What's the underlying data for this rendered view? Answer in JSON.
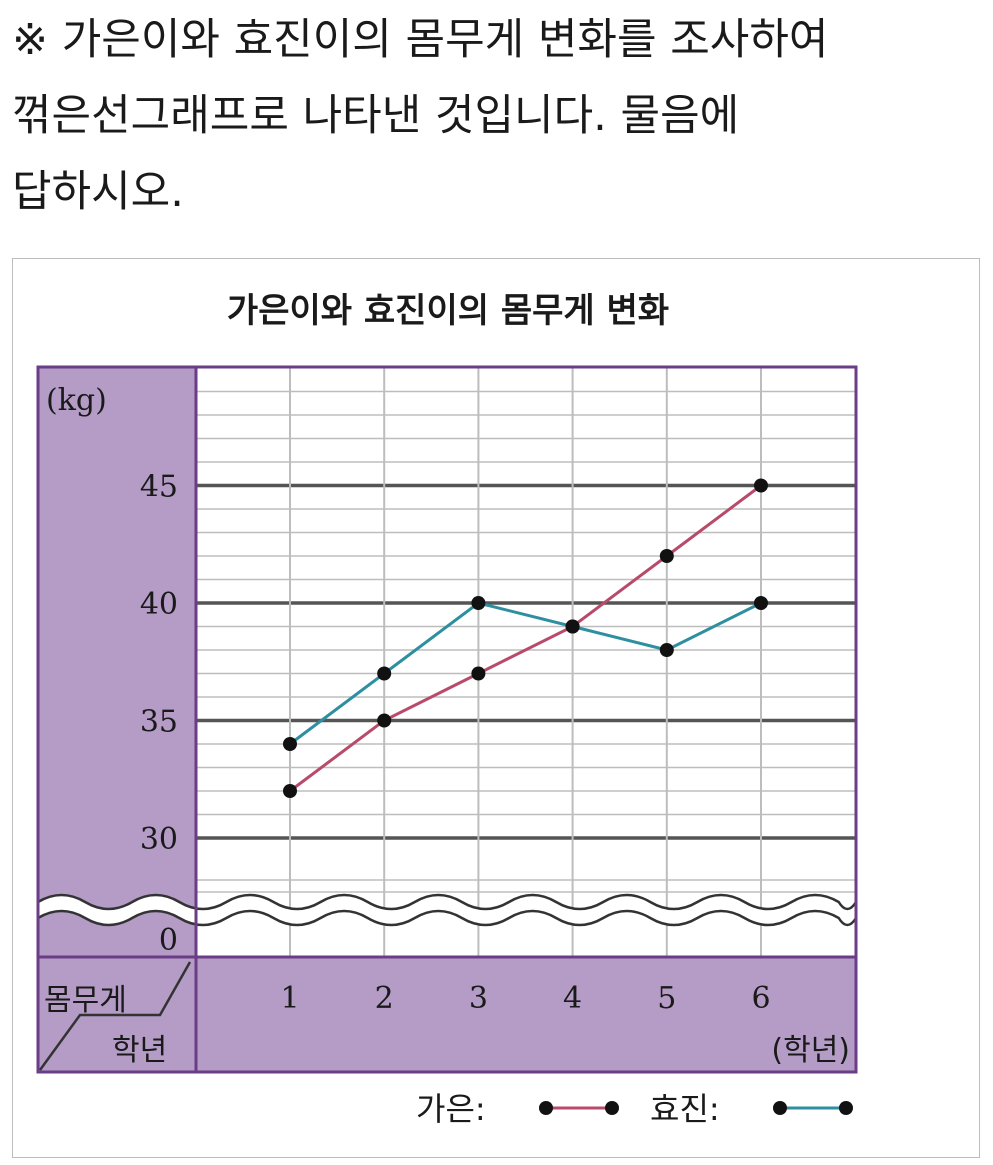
{
  "question": {
    "lines": [
      "※ 가은이와 효진이의 몸무게 변화를 조사하여",
      "꺾은선그래프로 나타낸 것입니다. 물음에",
      "답하시오."
    ]
  },
  "chart_data": {
    "type": "line",
    "title": "가은이와 효진이의 몸무게 변화",
    "ylabel": "(kg)",
    "xlabel": "(학년)",
    "corner_top": "몸무게",
    "corner_bottom": "학년",
    "categories": [
      "1",
      "2",
      "3",
      "4",
      "5",
      "6"
    ],
    "y_ticks": [
      "45",
      "40",
      "35",
      "30"
    ],
    "y_zero": "0",
    "ylim": [
      30,
      45
    ],
    "broken_axis": true,
    "grid": true,
    "legend_position": "bottom-right",
    "series": [
      {
        "name": "가은",
        "legend_label": "가은:",
        "color": "#b84a6a",
        "values": [
          32,
          35,
          37,
          39,
          42,
          45
        ]
      },
      {
        "name": "효진",
        "legend_label": "효진:",
        "color": "#2e8fa0",
        "values": [
          34,
          37,
          40,
          39,
          38,
          40
        ]
      }
    ],
    "colors": {
      "panel": "#b59cc7",
      "border": "#6b3d87",
      "grid": "#bdbdbd",
      "major": "#555555"
    }
  }
}
